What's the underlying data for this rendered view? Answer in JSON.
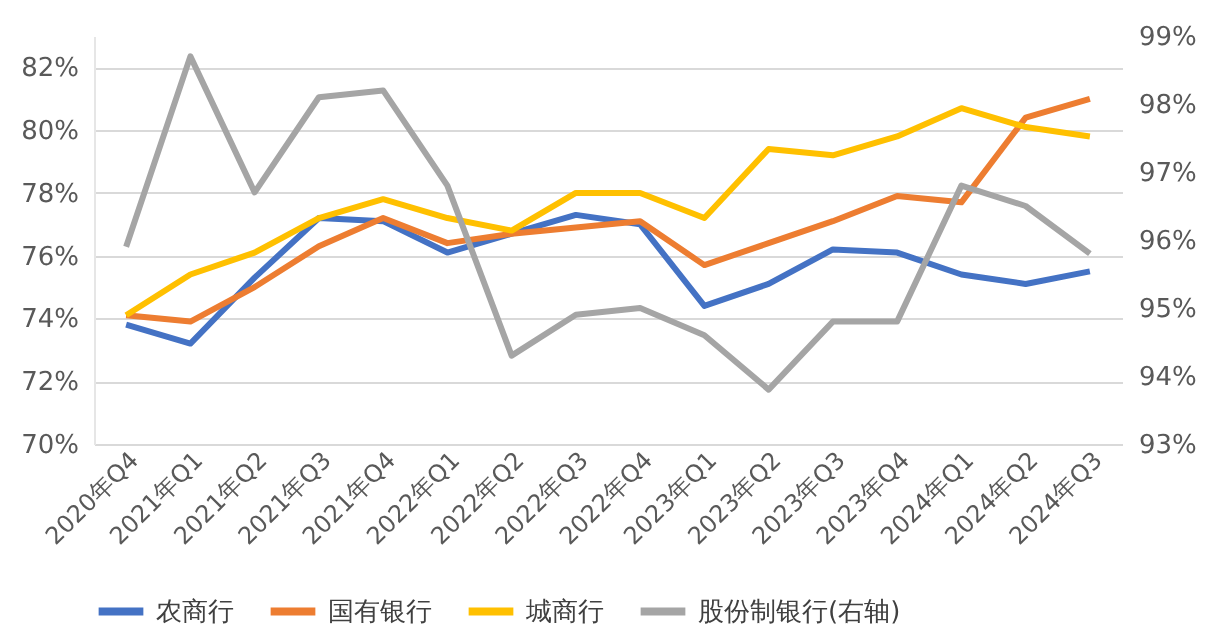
{
  "chart_data": {
    "type": "line",
    "categories": [
      "2020年Q4",
      "2021年Q1",
      "2021年Q2",
      "2021年Q3",
      "2021年Q4",
      "2022年Q1",
      "2022年Q2",
      "2022年Q3",
      "2022年Q4",
      "2023年Q1",
      "2023年Q2",
      "2023年Q3",
      "2023年Q4",
      "2024年Q1",
      "2024年Q2",
      "2024年Q3"
    ],
    "series": [
      {
        "name": "农商行",
        "color": "#4472c4",
        "values": [
          73.8,
          73.2,
          75.3,
          77.2,
          77.1,
          76.1,
          76.7,
          77.3,
          77.0,
          74.4,
          75.1,
          76.2,
          76.1,
          75.4,
          75.1,
          75.5
        ]
      },
      {
        "name": "国有银行",
        "color": "#ed7d31",
        "values": [
          74.1,
          73.9,
          75.0,
          76.3,
          77.2,
          76.4,
          76.7,
          76.9,
          77.1,
          75.7,
          76.4,
          77.1,
          77.9,
          77.7,
          80.4,
          81.0
        ]
      },
      {
        "name": "城商行",
        "color": "#ffc000",
        "values": [
          74.1,
          75.4,
          76.1,
          77.2,
          77.8,
          77.2,
          76.8,
          78.0,
          78.0,
          77.2,
          79.4,
          79.2,
          79.8,
          80.7,
          80.1,
          79.8
        ]
      },
      {
        "name": "股份制银行(右轴)",
        "color": "#a5a5a5",
        "axis": "y2",
        "values": [
          95.9,
          98.7,
          96.7,
          98.1,
          98.2,
          96.8,
          94.3,
          94.9,
          95.0,
          94.6,
          93.8,
          94.8,
          94.8,
          96.8,
          96.5,
          95.8
        ]
      }
    ],
    "ylim": [
      70,
      83
    ],
    "yticks": [
      {
        "value": 70,
        "label": "70%"
      },
      {
        "value": 72,
        "label": "72%"
      },
      {
        "value": 74,
        "label": "74%"
      },
      {
        "value": 76,
        "label": "76%"
      },
      {
        "value": 78,
        "label": "78%"
      },
      {
        "value": 80,
        "label": "80%"
      },
      {
        "value": 82,
        "label": "82%"
      }
    ],
    "y2lim": [
      93,
      99
    ],
    "y2ticks": [
      {
        "value": 93,
        "label": "93%"
      },
      {
        "value": 94,
        "label": "94%"
      },
      {
        "value": 95,
        "label": "95%"
      },
      {
        "value": 96,
        "label": "96%"
      },
      {
        "value": 97,
        "label": "97%"
      },
      {
        "value": 98,
        "label": "98%"
      },
      {
        "value": 99,
        "label": "99%"
      }
    ],
    "grid": "y",
    "legend": "bottom",
    "marker": "none",
    "line_style": "solid"
  }
}
